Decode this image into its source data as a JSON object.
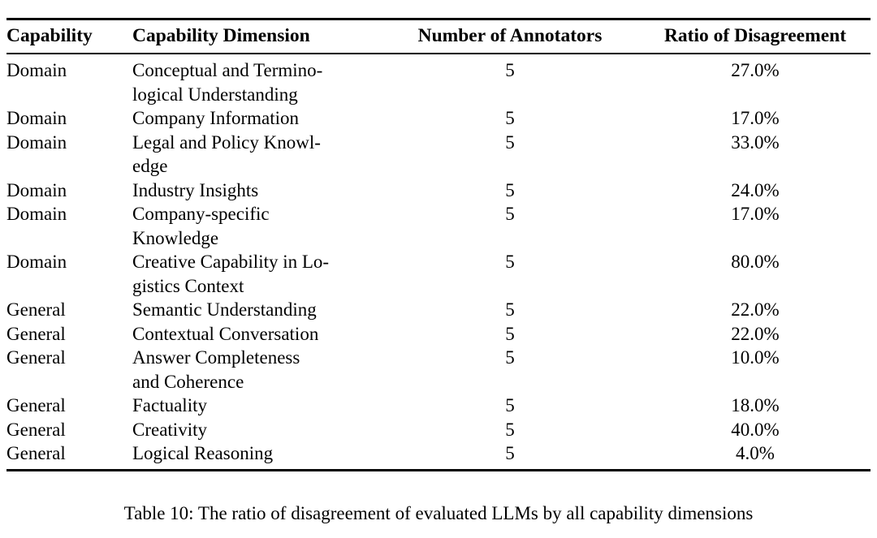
{
  "colors": {
    "text": "#000000",
    "background": "#ffffff",
    "rule": "#000000"
  },
  "table": {
    "columns": [
      "Capability",
      "Capability Dimension",
      "Number of Annotators",
      "Ratio of Disagreement"
    ],
    "rows": [
      {
        "capability": "Domain",
        "dimension": "Conceptual and Termino-\nlogical Understanding",
        "annotators": "5",
        "disagreement": "27.0%"
      },
      {
        "capability": "Domain",
        "dimension": "Company Information",
        "annotators": "5",
        "disagreement": "17.0%"
      },
      {
        "capability": "Domain",
        "dimension": "Legal and Policy Knowl-\nedge",
        "annotators": "5",
        "disagreement": "33.0%"
      },
      {
        "capability": "Domain",
        "dimension": "Industry Insights",
        "annotators": "5",
        "disagreement": "24.0%"
      },
      {
        "capability": "Domain",
        "dimension": "Company-specific\nKnowledge",
        "annotators": "5",
        "disagreement": "17.0%"
      },
      {
        "capability": "Domain",
        "dimension": "Creative Capability in Lo-\ngistics Context",
        "annotators": "5",
        "disagreement": "80.0%"
      },
      {
        "capability": "General",
        "dimension": "Semantic Understanding",
        "annotators": "5",
        "disagreement": "22.0%"
      },
      {
        "capability": "General",
        "dimension": "Contextual Conversation",
        "annotators": "5",
        "disagreement": "22.0%"
      },
      {
        "capability": "General",
        "dimension": "Answer Completeness\nand Coherence",
        "annotators": "5",
        "disagreement": "10.0%"
      },
      {
        "capability": "General",
        "dimension": "Factuality",
        "annotators": "5",
        "disagreement": "18.0%"
      },
      {
        "capability": "General",
        "dimension": "Creativity",
        "annotators": "5",
        "disagreement": "40.0%"
      },
      {
        "capability": "General",
        "dimension": "Logical Reasoning",
        "annotators": "5",
        "disagreement": "4.0%"
      }
    ],
    "caption": "Table 10: The ratio of disagreement of evaluated LLMs by all capability dimensions"
  }
}
